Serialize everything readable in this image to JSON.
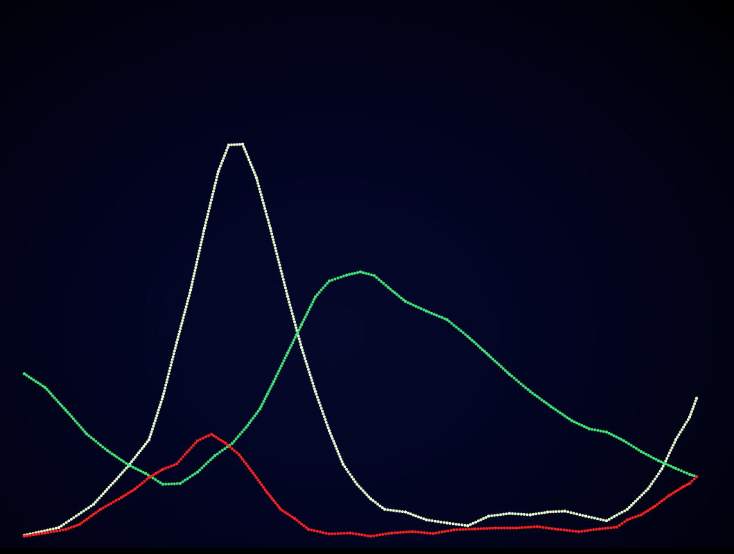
{
  "chart_data": {
    "type": "line",
    "title": "",
    "xlabel": "",
    "ylabel": "",
    "xlim": [
      0,
      100
    ],
    "ylim": [
      0,
      100
    ],
    "grid": false,
    "legend": "none",
    "series": [
      {
        "color": "#e8ffd0",
        "marker": "dotted",
        "points": [
          [
            0,
            0
          ],
          [
            5,
            1.7
          ],
          [
            10,
            6.8
          ],
          [
            15,
            15.2
          ],
          [
            18,
            21
          ],
          [
            20,
            30.5
          ],
          [
            22,
            42.4
          ],
          [
            24,
            53.9
          ],
          [
            26,
            67.5
          ],
          [
            28,
            80
          ],
          [
            29.5,
            85.8
          ],
          [
            31.5,
            86
          ],
          [
            33.5,
            78.6
          ],
          [
            35.5,
            67.5
          ],
          [
            38,
            52.5
          ],
          [
            40,
            41.3
          ],
          [
            42,
            31.6
          ],
          [
            44,
            23
          ],
          [
            46,
            15.6
          ],
          [
            48,
            11.2
          ],
          [
            50,
            8
          ],
          [
            52,
            5.7
          ],
          [
            55,
            5.1
          ],
          [
            58,
            3.4
          ],
          [
            61,
            2.7
          ],
          [
            64,
            2.1
          ],
          [
            67,
            4.2
          ],
          [
            70,
            4.8
          ],
          [
            73,
            4.5
          ],
          [
            75.5,
            5.1
          ],
          [
            78,
            5.3
          ],
          [
            81,
            4.2
          ],
          [
            84,
            3.2
          ],
          [
            87,
            5.7
          ],
          [
            90,
            10.2
          ],
          [
            92,
            14.6
          ],
          [
            94,
            21
          ],
          [
            96,
            26
          ],
          [
            97,
            30.1
          ]
        ]
      },
      {
        "color": "#3de878",
        "marker": "dotted",
        "points": [
          [
            0,
            35.5
          ],
          [
            3,
            32.5
          ],
          [
            6,
            27.5
          ],
          [
            9,
            22.3
          ],
          [
            12,
            18.6
          ],
          [
            15,
            15.5
          ],
          [
            17.5,
            13.6
          ],
          [
            20,
            11.2
          ],
          [
            22.5,
            11.4
          ],
          [
            25,
            13.9
          ],
          [
            27.5,
            17.5
          ],
          [
            30,
            20.2
          ],
          [
            32,
            23.7
          ],
          [
            34,
            27.8
          ],
          [
            36,
            33.8
          ],
          [
            38,
            40.1
          ],
          [
            40,
            46.3
          ],
          [
            42,
            52.4
          ],
          [
            44,
            55.9
          ],
          [
            46.5,
            57.2
          ],
          [
            48.5,
            57.9
          ],
          [
            50.5,
            57.1
          ],
          [
            52.5,
            54.5
          ],
          [
            55,
            51.4
          ],
          [
            58,
            49.3
          ],
          [
            61,
            47.4
          ],
          [
            64,
            43.7
          ],
          [
            67,
            39.6
          ],
          [
            70,
            35.4
          ],
          [
            73,
            31.6
          ],
          [
            76,
            28.3
          ],
          [
            79,
            25.2
          ],
          [
            81.5,
            23.4
          ],
          [
            84,
            22.7
          ],
          [
            86.5,
            20.8
          ],
          [
            89,
            18.4
          ],
          [
            91.5,
            16.4
          ],
          [
            94,
            14.7
          ],
          [
            96,
            13.4
          ],
          [
            97,
            12.9
          ]
        ]
      },
      {
        "color": "#ff2020",
        "marker": "dotted",
        "points": [
          [
            0,
            -0.2
          ],
          [
            3,
            0.5
          ],
          [
            6,
            1.3
          ],
          [
            8,
            2.4
          ],
          [
            11,
            5.7
          ],
          [
            14,
            8.3
          ],
          [
            16,
            10.2
          ],
          [
            18,
            12.7
          ],
          [
            20,
            14.5
          ],
          [
            22,
            15.7
          ],
          [
            23.5,
            18.3
          ],
          [
            25,
            20.8
          ],
          [
            27,
            22.2
          ],
          [
            29,
            20.3
          ],
          [
            31,
            17.7
          ],
          [
            33,
            13.7
          ],
          [
            35,
            9.5
          ],
          [
            37,
            5.7
          ],
          [
            39,
            3.7
          ],
          [
            41,
            1.3
          ],
          [
            44,
            0.3
          ],
          [
            47,
            0.5
          ],
          [
            50,
            -0.2
          ],
          [
            53,
            0.5
          ],
          [
            56,
            0.8
          ],
          [
            59,
            0.4
          ],
          [
            62,
            1.2
          ],
          [
            65,
            1.4
          ],
          [
            68,
            1.6
          ],
          [
            71,
            1.6
          ],
          [
            74,
            1.9
          ],
          [
            77,
            1.3
          ],
          [
            80,
            0.8
          ],
          [
            83,
            1.4
          ],
          [
            85.5,
            1.8
          ],
          [
            87,
            3.4
          ],
          [
            89,
            4.5
          ],
          [
            91,
            6.4
          ],
          [
            93,
            8.7
          ],
          [
            95,
            10.6
          ],
          [
            96,
            11.4
          ],
          [
            97,
            12.9
          ]
        ]
      }
    ]
  }
}
